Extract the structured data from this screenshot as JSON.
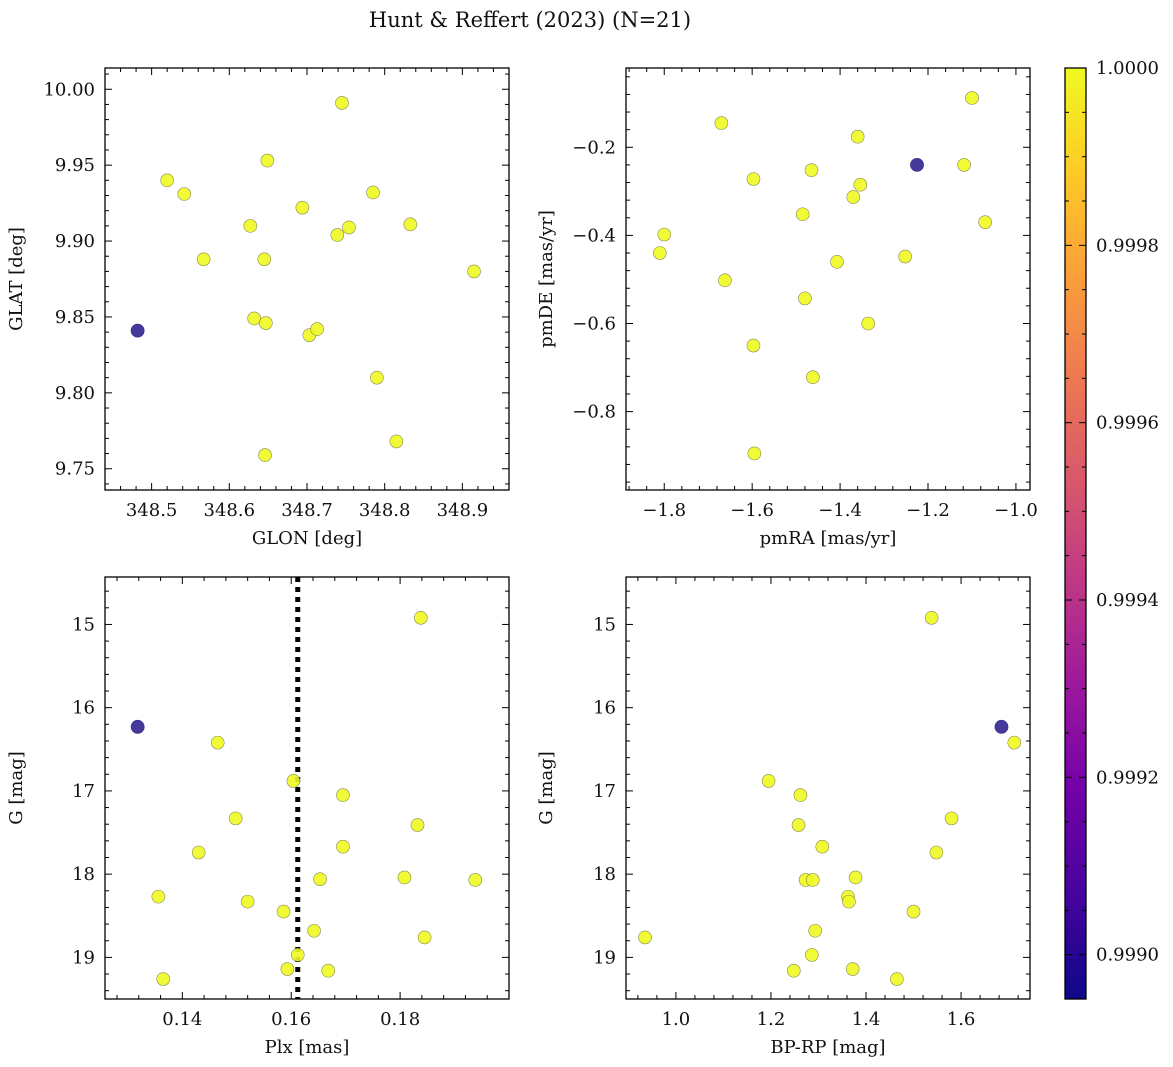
{
  "title": "Hunt & Reffert (2023) (N=21)",
  "colors": {
    "member": "#f0f921",
    "member_edge": "#8a8a55",
    "outlier": "#3b2f94",
    "vline": "#000000",
    "cmap": [
      "#0d0887",
      "#46039f",
      "#7201a8",
      "#9c179e",
      "#bd3786",
      "#d8576b",
      "#ed7953",
      "#fb9f3a",
      "#fdca26",
      "#f0f921"
    ]
  },
  "colorbar": {
    "min": 0.99895,
    "max": 1.0,
    "ticks": [
      "1.0000",
      "0.9998",
      "0.9996",
      "0.9994",
      "0.9992",
      "0.9990"
    ],
    "tick_values": [
      1.0,
      0.9998,
      0.9996,
      0.9994,
      0.9992,
      0.999
    ]
  },
  "chart_data": [
    {
      "type": "scatter",
      "name": "glon-glat",
      "xlabel": "GLON [deg]",
      "ylabel": "GLAT [deg]",
      "xlim": [
        348.44,
        348.96
      ],
      "ylim": [
        9.736,
        10.014
      ],
      "invert_y": false,
      "xticks": [
        348.5,
        348.6,
        348.7,
        348.8,
        348.9
      ],
      "xtick_labels": [
        "348.5",
        "348.6",
        "348.7",
        "348.8",
        "348.9"
      ],
      "yticks": [
        9.75,
        9.8,
        9.85,
        9.9,
        9.95,
        10.0
      ],
      "ytick_labels": [
        "9.75",
        "9.80",
        "9.85",
        "9.90",
        "9.95",
        "10.00"
      ],
      "points": [
        {
          "x": 348.482,
          "y": 9.841,
          "p": 0.999
        },
        {
          "x": 348.52,
          "y": 9.94,
          "p": 1.0
        },
        {
          "x": 348.542,
          "y": 9.931,
          "p": 1.0
        },
        {
          "x": 348.567,
          "y": 9.888,
          "p": 1.0
        },
        {
          "x": 348.627,
          "y": 9.91,
          "p": 1.0
        },
        {
          "x": 348.632,
          "y": 9.849,
          "p": 1.0
        },
        {
          "x": 348.645,
          "y": 9.888,
          "p": 1.0
        },
        {
          "x": 348.647,
          "y": 9.846,
          "p": 1.0
        },
        {
          "x": 348.649,
          "y": 9.953,
          "p": 1.0
        },
        {
          "x": 348.646,
          "y": 9.759,
          "p": 1.0
        },
        {
          "x": 348.694,
          "y": 9.922,
          "p": 1.0
        },
        {
          "x": 348.703,
          "y": 9.838,
          "p": 1.0
        },
        {
          "x": 348.713,
          "y": 9.842,
          "p": 1.0
        },
        {
          "x": 348.739,
          "y": 9.904,
          "p": 1.0
        },
        {
          "x": 348.745,
          "y": 9.991,
          "p": 1.0
        },
        {
          "x": 348.754,
          "y": 9.909,
          "p": 1.0
        },
        {
          "x": 348.785,
          "y": 9.932,
          "p": 1.0
        },
        {
          "x": 348.79,
          "y": 9.81,
          "p": 1.0
        },
        {
          "x": 348.815,
          "y": 9.768,
          "p": 1.0
        },
        {
          "x": 348.833,
          "y": 9.911,
          "p": 1.0
        },
        {
          "x": 348.915,
          "y": 9.88,
          "p": 1.0
        }
      ]
    },
    {
      "type": "scatter",
      "name": "pmra-pmde",
      "xlabel": "pmRA [mas/yr]",
      "ylabel": "pmDE [mas/yr]",
      "xlim": [
        -1.887,
        -0.968
      ],
      "ylim": [
        -0.978,
        -0.02
      ],
      "invert_y": false,
      "xticks": [
        -1.8,
        -1.6,
        -1.4,
        -1.2,
        -1.0
      ],
      "xtick_labels": [
        "−1.8",
        "−1.6",
        "−1.4",
        "−1.2",
        "−1.0"
      ],
      "yticks": [
        -0.8,
        -0.6,
        -0.4,
        -0.2
      ],
      "ytick_labels": [
        "−0.8",
        "−0.6",
        "−0.4",
        "−0.2"
      ],
      "points": [
        {
          "x": -1.225,
          "y": -0.24,
          "p": 0.999
        },
        {
          "x": -1.81,
          "y": -0.44,
          "p": 1.0
        },
        {
          "x": -1.8,
          "y": -0.398,
          "p": 1.0
        },
        {
          "x": -1.67,
          "y": -0.145,
          "p": 1.0
        },
        {
          "x": -1.662,
          "y": -0.502,
          "p": 1.0
        },
        {
          "x": -1.597,
          "y": -0.272,
          "p": 1.0
        },
        {
          "x": -1.597,
          "y": -0.65,
          "p": 1.0
        },
        {
          "x": -1.595,
          "y": -0.895,
          "p": 1.0
        },
        {
          "x": -1.485,
          "y": -0.352,
          "p": 1.0
        },
        {
          "x": -1.48,
          "y": -0.543,
          "p": 1.0
        },
        {
          "x": -1.465,
          "y": -0.252,
          "p": 1.0
        },
        {
          "x": -1.462,
          "y": -0.722,
          "p": 1.0
        },
        {
          "x": -1.407,
          "y": -0.46,
          "p": 1.0
        },
        {
          "x": -1.37,
          "y": -0.313,
          "p": 1.0
        },
        {
          "x": -1.36,
          "y": -0.176,
          "p": 1.0
        },
        {
          "x": -1.354,
          "y": -0.285,
          "p": 1.0
        },
        {
          "x": -1.336,
          "y": -0.6,
          "p": 1.0
        },
        {
          "x": -1.252,
          "y": -0.448,
          "p": 1.0
        },
        {
          "x": -1.118,
          "y": -0.24,
          "p": 1.0
        },
        {
          "x": -1.1,
          "y": -0.088,
          "p": 1.0
        },
        {
          "x": -1.07,
          "y": -0.37,
          "p": 1.0
        }
      ]
    },
    {
      "type": "scatter",
      "name": "plx-g",
      "xlabel": "Plx [mas]",
      "ylabel": "G [mag]",
      "xlim": [
        0.1258,
        0.2
      ],
      "ylim": [
        14.43,
        19.5
      ],
      "invert_y": true,
      "xticks": [
        0.14,
        0.16,
        0.18
      ],
      "xtick_labels": [
        "0.14",
        "0.16",
        "0.18"
      ],
      "yticks": [
        15,
        16,
        17,
        18,
        19
      ],
      "ytick_labels": [
        "15",
        "16",
        "17",
        "18",
        "19"
      ],
      "vline": 0.1612,
      "points": [
        {
          "x": 0.1318,
          "y": 16.23,
          "p": 0.999
        },
        {
          "x": 0.1356,
          "y": 18.27,
          "p": 1.0
        },
        {
          "x": 0.1365,
          "y": 19.26,
          "p": 1.0
        },
        {
          "x": 0.143,
          "y": 17.74,
          "p": 1.0
        },
        {
          "x": 0.1465,
          "y": 16.42,
          "p": 1.0
        },
        {
          "x": 0.1498,
          "y": 17.33,
          "p": 1.0
        },
        {
          "x": 0.152,
          "y": 18.33,
          "p": 1.0
        },
        {
          "x": 0.1586,
          "y": 18.45,
          "p": 1.0
        },
        {
          "x": 0.1593,
          "y": 19.14,
          "p": 1.0
        },
        {
          "x": 0.1604,
          "y": 16.88,
          "p": 1.0
        },
        {
          "x": 0.1612,
          "y": 18.97,
          "p": 1.0
        },
        {
          "x": 0.1642,
          "y": 18.68,
          "p": 1.0
        },
        {
          "x": 0.1653,
          "y": 18.06,
          "p": 1.0
        },
        {
          "x": 0.1668,
          "y": 19.16,
          "p": 1.0
        },
        {
          "x": 0.1695,
          "y": 17.05,
          "p": 1.0
        },
        {
          "x": 0.1695,
          "y": 17.67,
          "p": 1.0
        },
        {
          "x": 0.1808,
          "y": 18.04,
          "p": 1.0
        },
        {
          "x": 0.1832,
          "y": 17.41,
          "p": 1.0
        },
        {
          "x": 0.1838,
          "y": 14.92,
          "p": 1.0
        },
        {
          "x": 0.1845,
          "y": 18.76,
          "p": 1.0
        },
        {
          "x": 0.1938,
          "y": 18.07,
          "p": 1.0
        }
      ]
    },
    {
      "type": "scatter",
      "name": "bprp-g",
      "xlabel": "BP-RP [mag]",
      "ylabel": "G [mag]",
      "xlim": [
        0.895,
        1.745
      ],
      "ylim": [
        14.43,
        19.5
      ],
      "invert_y": true,
      "xticks": [
        1.0,
        1.2,
        1.4,
        1.6
      ],
      "xtick_labels": [
        "1.0",
        "1.2",
        "1.4",
        "1.6"
      ],
      "yticks": [
        15,
        16,
        17,
        18,
        19
      ],
      "ytick_labels": [
        "15",
        "16",
        "17",
        "18",
        "19"
      ],
      "points": [
        {
          "x": 1.685,
          "y": 16.23,
          "p": 0.999
        },
        {
          "x": 0.935,
          "y": 18.76,
          "p": 1.0
        },
        {
          "x": 1.195,
          "y": 16.88,
          "p": 1.0
        },
        {
          "x": 1.248,
          "y": 19.16,
          "p": 1.0
        },
        {
          "x": 1.258,
          "y": 17.41,
          "p": 1.0
        },
        {
          "x": 1.262,
          "y": 17.05,
          "p": 1.0
        },
        {
          "x": 1.273,
          "y": 18.07,
          "p": 1.0
        },
        {
          "x": 1.286,
          "y": 18.97,
          "p": 1.0
        },
        {
          "x": 1.288,
          "y": 18.07,
          "p": 1.0
        },
        {
          "x": 1.293,
          "y": 18.68,
          "p": 1.0
        },
        {
          "x": 1.308,
          "y": 17.67,
          "p": 1.0
        },
        {
          "x": 1.362,
          "y": 18.27,
          "p": 1.0
        },
        {
          "x": 1.364,
          "y": 18.33,
          "p": 1.0
        },
        {
          "x": 1.372,
          "y": 19.14,
          "p": 1.0
        },
        {
          "x": 1.378,
          "y": 18.04,
          "p": 1.0
        },
        {
          "x": 1.465,
          "y": 19.26,
          "p": 1.0
        },
        {
          "x": 1.5,
          "y": 18.45,
          "p": 1.0
        },
        {
          "x": 1.538,
          "y": 14.92,
          "p": 1.0
        },
        {
          "x": 1.548,
          "y": 17.74,
          "p": 1.0
        },
        {
          "x": 1.58,
          "y": 17.33,
          "p": 1.0
        },
        {
          "x": 1.712,
          "y": 16.42,
          "p": 1.0
        }
      ]
    }
  ]
}
